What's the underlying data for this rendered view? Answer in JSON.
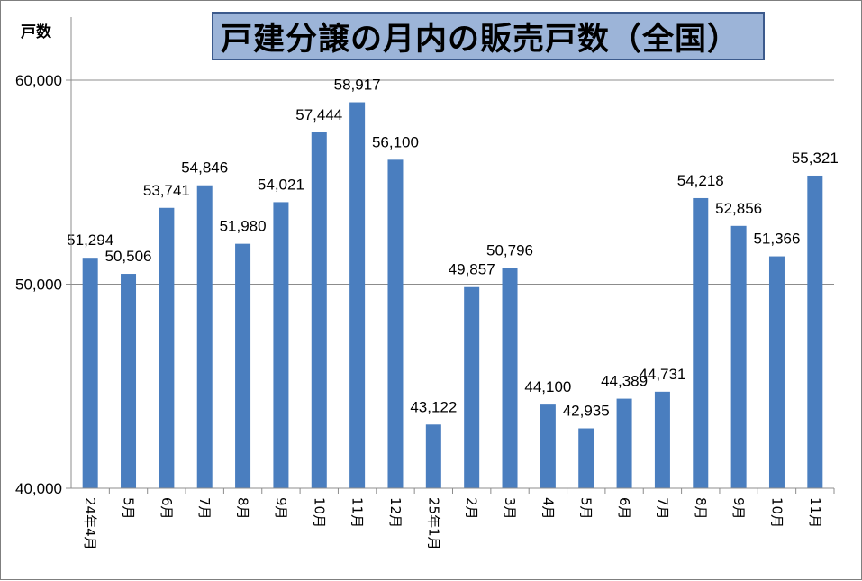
{
  "chart_data": {
    "type": "bar",
    "title": "戸建分譲の月内の販売戸数（全国）",
    "ylabel": "戸数",
    "ylim": [
      40000,
      60000
    ],
    "yticks": [
      40000,
      50000,
      60000
    ],
    "ytick_labels": [
      "40,000",
      "50,000",
      "60,000"
    ],
    "grid": true,
    "color": "#4a7ebf",
    "categories": [
      "24年4月",
      "5月",
      "6月",
      "7月",
      "8月",
      "9月",
      "10月",
      "11月",
      "12月",
      "25年1月",
      "2月",
      "3月",
      "4月",
      "5月",
      "6月",
      "7月",
      "8月",
      "9月",
      "10月",
      "11月"
    ],
    "values": [
      51294,
      50506,
      53741,
      54846,
      51980,
      54021,
      57444,
      58917,
      56100,
      43122,
      49857,
      50796,
      44100,
      42935,
      44389,
      44731,
      54218,
      52856,
      51366,
      55321
    ],
    "value_labels": [
      "51,294",
      "50,506",
      "53,741",
      "54,846",
      "51,980",
      "54,021",
      "57,444",
      "58,917",
      "56,100",
      "43,122",
      "49,857",
      "50,796",
      "44,100",
      "42,935",
      "44,389",
      "44,731",
      "54,218",
      "52,856",
      "51,366",
      "55,321"
    ]
  }
}
